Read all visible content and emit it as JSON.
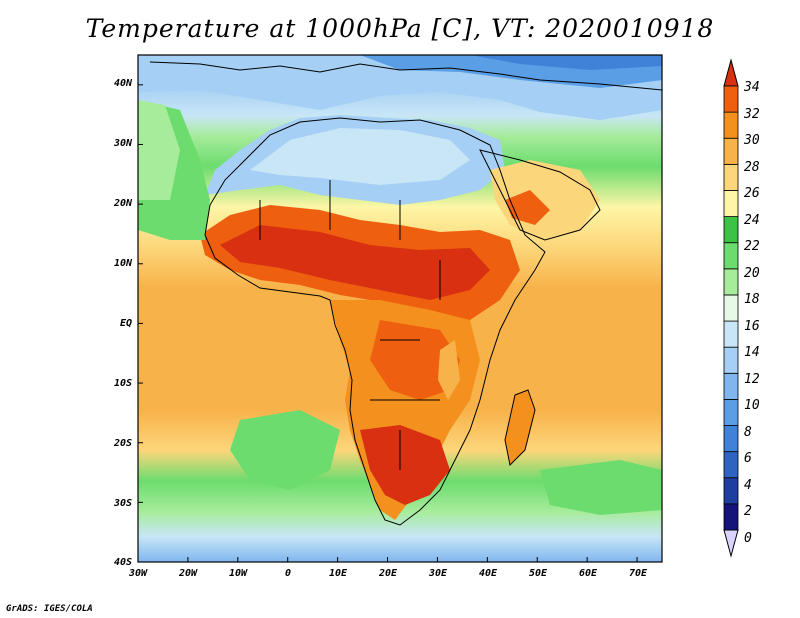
{
  "title": "Temperature at 1000hPa [C], VT: 2020010918",
  "credit": "GrADS: IGES/COLA",
  "map": {
    "variable": "Temperature at 1000hPa",
    "units": "C",
    "valid_time": "2020010918",
    "lon_range": [
      -30,
      75
    ],
    "lat_range": [
      -40,
      45
    ],
    "lon_ticks": [
      "30W",
      "20W",
      "10W",
      "0",
      "10E",
      "20E",
      "30E",
      "40E",
      "50E",
      "60E",
      "70E"
    ],
    "lat_ticks": [
      "40N",
      "30N",
      "20N",
      "10N",
      "EQ",
      "10S",
      "20S",
      "30S",
      "40S"
    ]
  },
  "colorbar": {
    "levels": [
      "0",
      "2",
      "4",
      "6",
      "8",
      "10",
      "12",
      "14",
      "16",
      "18",
      "20",
      "22",
      "24",
      "26",
      "28",
      "30",
      "32",
      "34"
    ],
    "colors": [
      "#d8d4ff",
      "#14147a",
      "#1e3fa0",
      "#2f63c2",
      "#3f82d8",
      "#5a9ee6",
      "#7fb6ee",
      "#a5cff4",
      "#c8e6f6",
      "#e6f8e6",
      "#a6ec9a",
      "#6cdc6e",
      "#3cc244",
      "#fef6a6",
      "#fcd67a",
      "#f8b24a",
      "#f4901e",
      "#ee6010",
      "#d83010"
    ]
  }
}
